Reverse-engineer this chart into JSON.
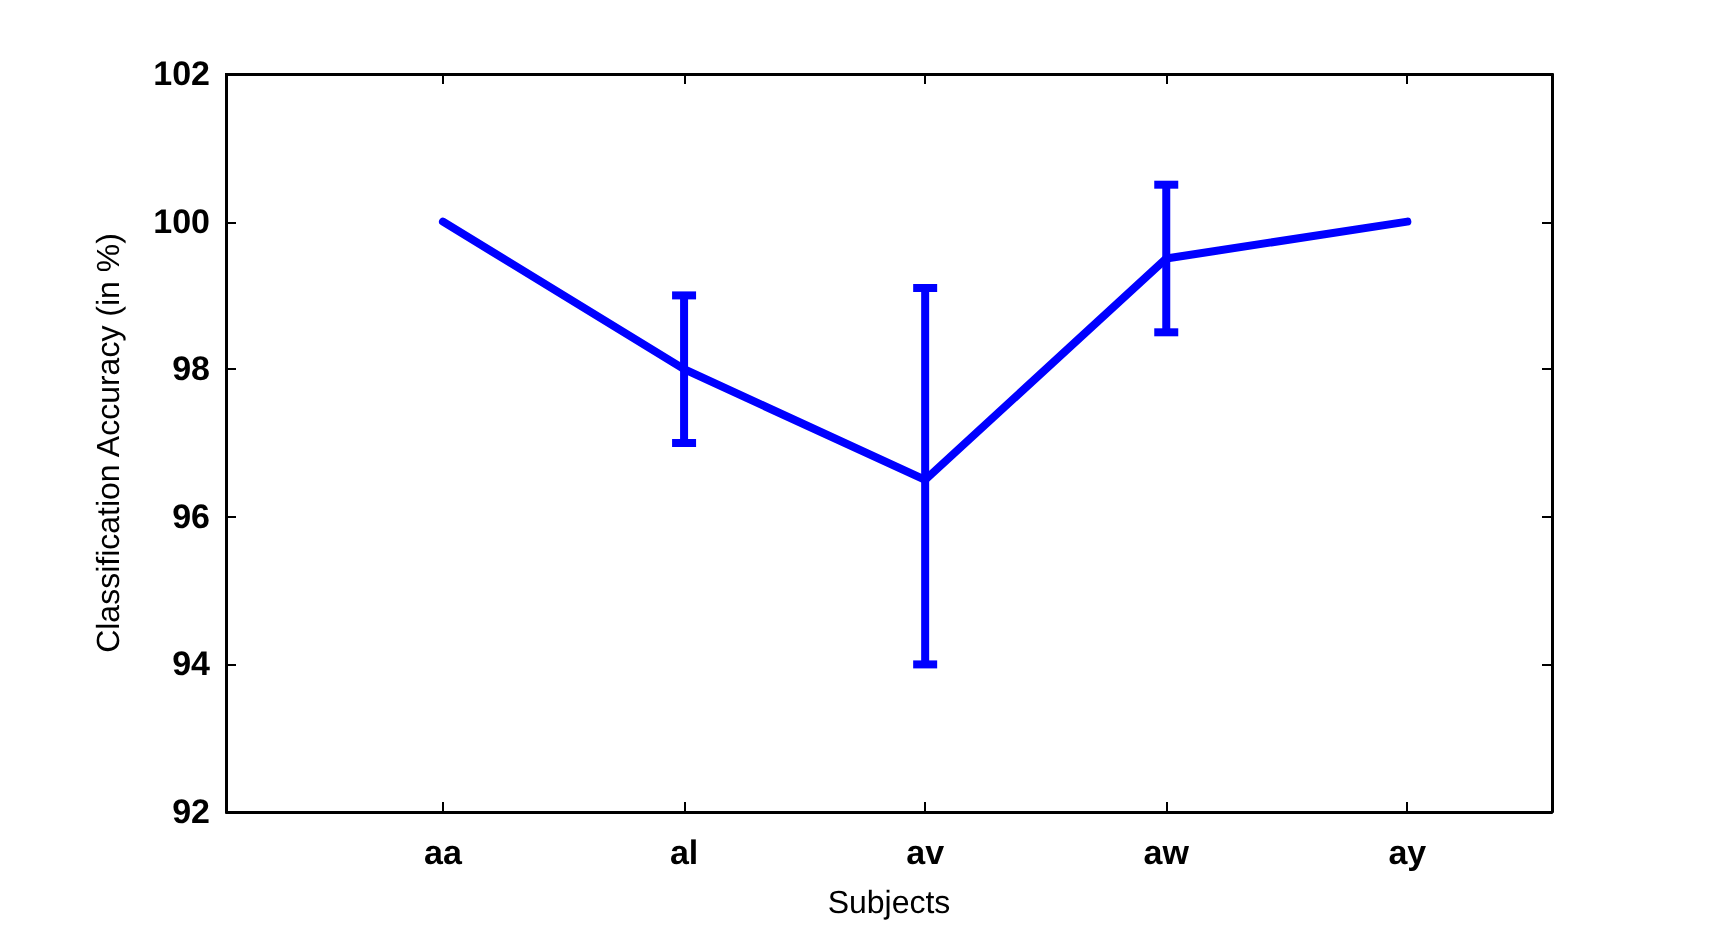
{
  "chart_data": {
    "type": "line",
    "xlabel": "Subjects",
    "ylabel": "Classification Accuracy (in %)",
    "categories": [
      "aa",
      "al",
      "av",
      "aw",
      "ay"
    ],
    "series": [
      {
        "color": "#0000ff",
        "values": [
          100,
          98,
          96.5,
          99.5,
          100
        ],
        "errors": [
          null,
          1,
          [
            94,
            99.1
          ],
          1,
          null
        ]
      }
    ],
    "ylim": [
      92,
      102
    ],
    "yticks": [
      92,
      94,
      96,
      98,
      100,
      102
    ],
    "grid": false,
    "marker": "none",
    "line_style": "solid"
  }
}
